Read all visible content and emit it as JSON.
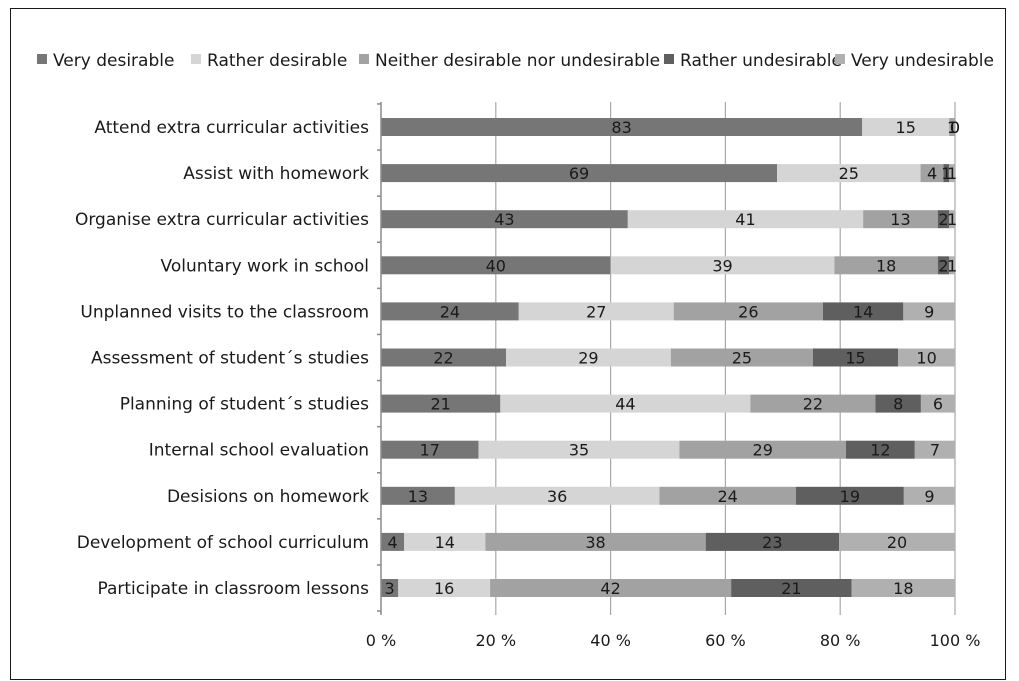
{
  "chart_data": {
    "type": "bar",
    "orientation": "horizontal",
    "stacked": true,
    "normalized_percent": true,
    "title": "",
    "xlabel": "",
    "ylabel": "",
    "xlim": [
      0,
      100
    ],
    "x_ticks": [
      "0 %",
      "20 %",
      "40 %",
      "60 %",
      "80 %",
      "100 %"
    ],
    "grid": true,
    "legend_position": "top",
    "categories": [
      "Attend extra curricular activities",
      "Assist with homework",
      "Organise extra curricular activities",
      "Voluntary work in school",
      "Unplanned visits to the classroom",
      "Assessment of student´s studies",
      "Planning of student´s studies",
      "Internal school evaluation",
      "Desisions on homework",
      "Development of school curriculum",
      "Participate in classroom lessons"
    ],
    "series": [
      {
        "name": "Very desirable",
        "color": "#767676",
        "values": [
          83,
          69,
          43,
          40,
          24,
          22,
          21,
          17,
          13,
          4,
          3
        ]
      },
      {
        "name": "Rather desirable",
        "color": "#d5d5d5",
        "values": [
          15,
          25,
          41,
          39,
          27,
          29,
          44,
          35,
          36,
          14,
          16
        ]
      },
      {
        "name": "Neither desirable nor undesirable",
        "color": "#a2a2a2",
        "values": [
          1,
          4,
          13,
          18,
          26,
          25,
          22,
          29,
          24,
          38,
          42
        ]
      },
      {
        "name": "Rather undesirable",
        "color": "#5f5f5f",
        "values": [
          0,
          1,
          2,
          2,
          14,
          15,
          8,
          12,
          19,
          23,
          21
        ]
      },
      {
        "name": "Very undesirable",
        "color": "#b0b0b0",
        "values": [
          0,
          1,
          1,
          1,
          9,
          10,
          6,
          7,
          9,
          20,
          18
        ]
      }
    ]
  }
}
